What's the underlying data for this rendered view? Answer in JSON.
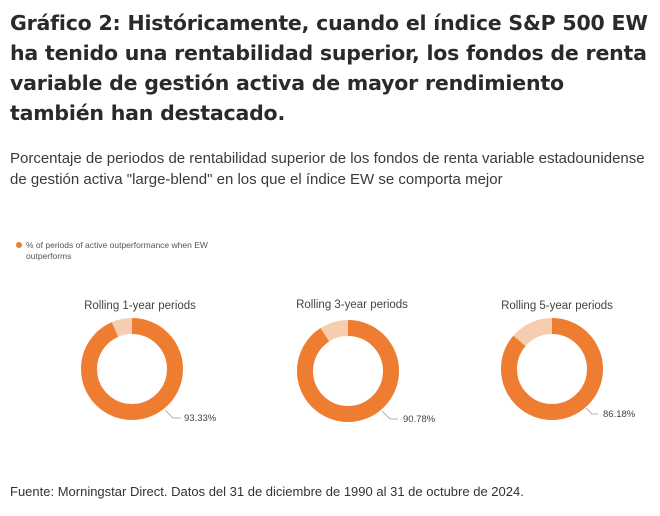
{
  "title": "Gráfico 2: Históricamente, cuando el índice S&P 500 EW ha tenido una rentabilidad superior, los fondos de renta variable de gestión activa de mayor rendimiento también han destacado.",
  "subtitle": "Porcentaje de periodos de rentabilidad superior de los fondos de renta variable estadounidense de gestión activa \"large-blend\" en los que el índice EW se comporta mejor",
  "legend": {
    "label": "% of periods of active outperformance when EW outperforms",
    "color": "#ee7d31"
  },
  "colors": {
    "primary": "#ee7d31",
    "secondary": "#f7cdb0"
  },
  "chart_data": [
    {
      "type": "pie",
      "donut": true,
      "title": "Rolling 1-year periods",
      "value": 93.33,
      "label": "93.33%"
    },
    {
      "type": "pie",
      "donut": true,
      "title": "Rolling 3-year periods",
      "value": 90.78,
      "label": "90.78%"
    },
    {
      "type": "pie",
      "donut": true,
      "title": "Rolling 5-year periods",
      "value": 86.18,
      "label": "86.18%"
    }
  ],
  "source": "Fuente: Morningstar Direct. Datos del 31 de diciembre de 1990 al 31 de octubre de 2024."
}
